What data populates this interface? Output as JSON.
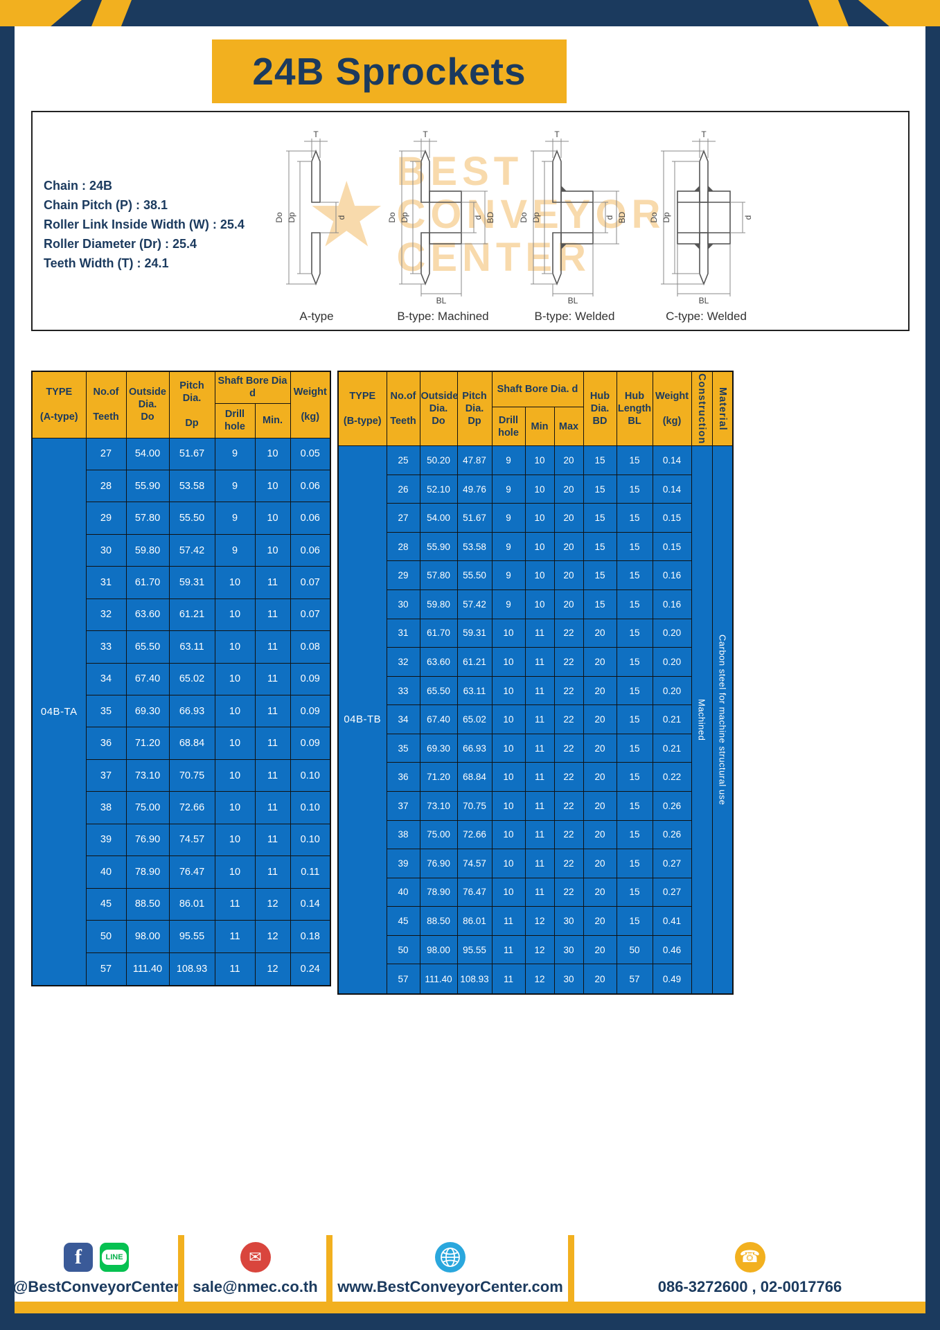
{
  "title": "24B Sprockets",
  "colors": {
    "navy": "#1b3a5e",
    "yellow": "#f2b01f",
    "blue": "#0f70c2"
  },
  "specs": {
    "lines": [
      "Chain : 24B",
      "Chain Pitch (P) : 38.1",
      "Roller Link Inside Width (W) : 25.4",
      "Roller Diameter (Dr) : 25.4",
      "Teeth Width (T) : 24.1"
    ]
  },
  "watermark": {
    "star": "★",
    "line1": "BEST",
    "line2": "CONVEYOR",
    "line3": "CENTER"
  },
  "drawings": [
    {
      "label": "A-type",
      "t": "T",
      "do": "Do",
      "dp": "Dp",
      "d": "d"
    },
    {
      "label": "B-type: Machined",
      "t": "T",
      "do": "Do",
      "dp": "Dp",
      "d": "d",
      "bd": "BD",
      "bl": "BL"
    },
    {
      "label": "B-type: Welded",
      "t": "T",
      "do": "Do",
      "dp": "Dp",
      "d": "d",
      "bd": "BD",
      "bl": "BL"
    },
    {
      "label": "C-type: Welded",
      "t": "T",
      "do": "Do",
      "dp": "Dp",
      "d": "d",
      "bl": "BL"
    }
  ],
  "table_a": {
    "header": {
      "type": "TYPE\n\n(A-type)",
      "teeth": "No.of\n\nTeeth",
      "outside": "Outside\nDia.\nDo",
      "pitch": "Pitch Dia.\n\nDp",
      "bore": "Shaft Bore Dia d",
      "drill": "Drill hole",
      "min": "Min.",
      "weight": "Weight\n\n(kg)"
    },
    "type_label": "04B-TA",
    "rows": [
      [
        "27",
        "54.00",
        "51.67",
        "9",
        "10",
        "0.05"
      ],
      [
        "28",
        "55.90",
        "53.58",
        "9",
        "10",
        "0.06"
      ],
      [
        "29",
        "57.80",
        "55.50",
        "9",
        "10",
        "0.06"
      ],
      [
        "30",
        "59.80",
        "57.42",
        "9",
        "10",
        "0.06"
      ],
      [
        "31",
        "61.70",
        "59.31",
        "10",
        "11",
        "0.07"
      ],
      [
        "32",
        "63.60",
        "61.21",
        "10",
        "11",
        "0.07"
      ],
      [
        "33",
        "65.50",
        "63.11",
        "10",
        "11",
        "0.08"
      ],
      [
        "34",
        "67.40",
        "65.02",
        "10",
        "11",
        "0.09"
      ],
      [
        "35",
        "69.30",
        "66.93",
        "10",
        "11",
        "0.09"
      ],
      [
        "36",
        "71.20",
        "68.84",
        "10",
        "11",
        "0.09"
      ],
      [
        "37",
        "73.10",
        "70.75",
        "10",
        "11",
        "0.10"
      ],
      [
        "38",
        "75.00",
        "72.66",
        "10",
        "11",
        "0.10"
      ],
      [
        "39",
        "76.90",
        "74.57",
        "10",
        "11",
        "0.10"
      ],
      [
        "40",
        "78.90",
        "76.47",
        "10",
        "11",
        "0.11"
      ],
      [
        "45",
        "88.50",
        "86.01",
        "11",
        "12",
        "0.14"
      ],
      [
        "50",
        "98.00",
        "95.55",
        "11",
        "12",
        "0.18"
      ],
      [
        "57",
        "111.40",
        "108.93",
        "11",
        "12",
        "0.24"
      ]
    ]
  },
  "table_b": {
    "header": {
      "type": "TYPE\n\n(B-type)",
      "teeth": "No.of\n\nTeeth",
      "outside": "Outside\nDia.\nDo",
      "pitch": "Pitch\nDia.\nDp",
      "bore": "Shaft Bore Dia.  d",
      "drill": "Drill hole",
      "min": "Min",
      "max": "Max",
      "hub_dia": "Hub\nDia.\nBD",
      "hub_len": "Hub\nLength\nBL",
      "weight": "Weight\n\n(kg)",
      "construction": "Construction",
      "material": "Material"
    },
    "type_label": "04B-TB",
    "construction_value": "Machined",
    "material_value": "Carbon steel for machine structural use",
    "rows": [
      [
        "25",
        "50.20",
        "47.87",
        "9",
        "10",
        "20",
        "15",
        "15",
        "0.14"
      ],
      [
        "26",
        "52.10",
        "49.76",
        "9",
        "10",
        "20",
        "15",
        "15",
        "0.14"
      ],
      [
        "27",
        "54.00",
        "51.67",
        "9",
        "10",
        "20",
        "15",
        "15",
        "0.15"
      ],
      [
        "28",
        "55.90",
        "53.58",
        "9",
        "10",
        "20",
        "15",
        "15",
        "0.15"
      ],
      [
        "29",
        "57.80",
        "55.50",
        "9",
        "10",
        "20",
        "15",
        "15",
        "0.16"
      ],
      [
        "30",
        "59.80",
        "57.42",
        "9",
        "10",
        "20",
        "15",
        "15",
        "0.16"
      ],
      [
        "31",
        "61.70",
        "59.31",
        "10",
        "11",
        "22",
        "20",
        "15",
        "0.20"
      ],
      [
        "32",
        "63.60",
        "61.21",
        "10",
        "11",
        "22",
        "20",
        "15",
        "0.20"
      ],
      [
        "33",
        "65.50",
        "63.11",
        "10",
        "11",
        "22",
        "20",
        "15",
        "0.20"
      ],
      [
        "34",
        "67.40",
        "65.02",
        "10",
        "11",
        "22",
        "20",
        "15",
        "0.21"
      ],
      [
        "35",
        "69.30",
        "66.93",
        "10",
        "11",
        "22",
        "20",
        "15",
        "0.21"
      ],
      [
        "36",
        "71.20",
        "68.84",
        "10",
        "11",
        "22",
        "20",
        "15",
        "0.22"
      ],
      [
        "37",
        "73.10",
        "70.75",
        "10",
        "11",
        "22",
        "20",
        "15",
        "0.26"
      ],
      [
        "38",
        "75.00",
        "72.66",
        "10",
        "11",
        "22",
        "20",
        "15",
        "0.26"
      ],
      [
        "39",
        "76.90",
        "74.57",
        "10",
        "11",
        "22",
        "20",
        "15",
        "0.27"
      ],
      [
        "40",
        "78.90",
        "76.47",
        "10",
        "11",
        "22",
        "20",
        "15",
        "0.27"
      ],
      [
        "45",
        "88.50",
        "86.01",
        "11",
        "12",
        "30",
        "20",
        "15",
        "0.41"
      ],
      [
        "50",
        "98.00",
        "95.55",
        "11",
        "12",
        "30",
        "20",
        "50",
        "0.46"
      ],
      [
        "57",
        "111.40",
        "108.93",
        "11",
        "12",
        "30",
        "20",
        "57",
        "0.49"
      ]
    ]
  },
  "footer": {
    "icons": {
      "facebook": "f",
      "line": "LINE",
      "mail": "✉",
      "phone": "☎"
    },
    "social_text": "@BestConveyorCenter",
    "email_text": "sale@nmec.co.th",
    "web_text": "www.BestConveyorCenter.com",
    "phone_text": "086-3272600 , 02-0017766"
  }
}
